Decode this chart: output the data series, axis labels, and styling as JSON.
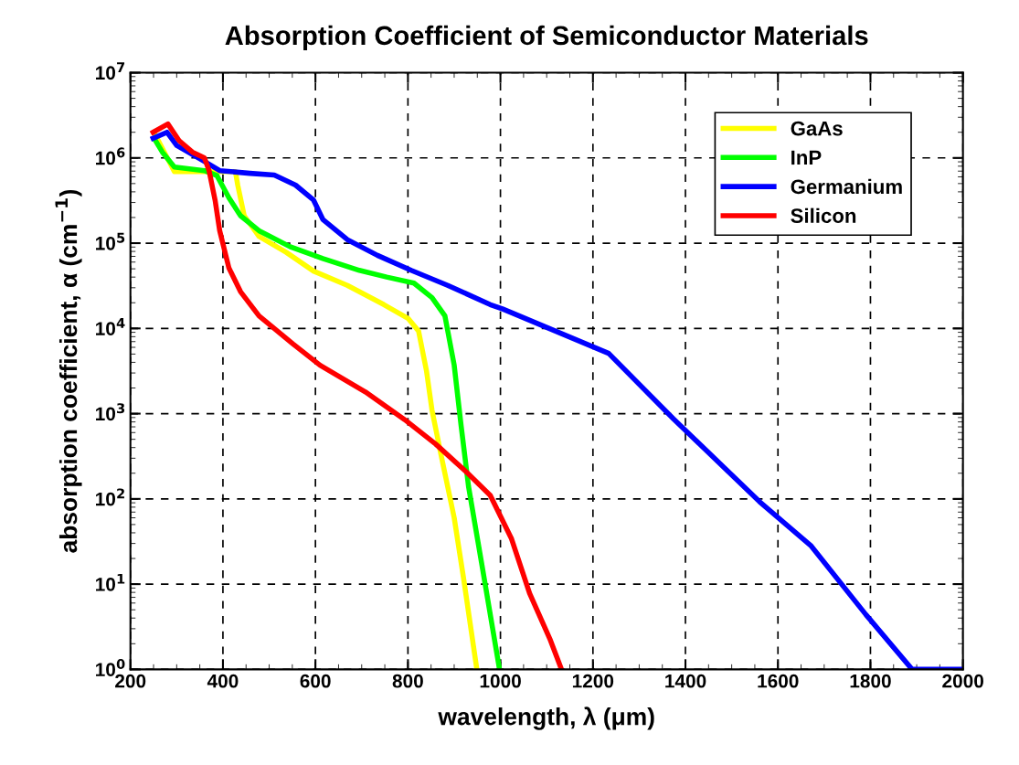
{
  "chart_data": {
    "type": "line",
    "title": "Absorption Coefficient of Semiconductor Materials",
    "xlabel": "wavelength, λ (μm)",
    "ylabel": "absorption coefficient, α (cm$^{−1}$)",
    "log": "y",
    "xlim": [
      200,
      2000
    ],
    "xticks": [
      200,
      400,
      600,
      800,
      1000,
      1200,
      1400,
      1600,
      1800,
      2000
    ],
    "ylim": [
      1,
      10000000
    ],
    "yticks": [
      {
        "value": 1,
        "label": "10$^{0}$"
      },
      {
        "value": 10,
        "label": "10$^{1}$"
      },
      {
        "value": 100,
        "label": "10$^{2}$"
      },
      {
        "value": 1000,
        "label": "10$^{3}$"
      },
      {
        "value": 10000,
        "label": "10$^{4}$"
      },
      {
        "value": 100000,
        "label": "10$^{5}$"
      },
      {
        "value": 1000000,
        "label": "10$^{6}$"
      },
      {
        "value": 10000000,
        "label": "10$^{7}$"
      }
    ],
    "grid": true,
    "legend": "top right",
    "line_style": "solid",
    "marker": "none",
    "series": [
      {
        "name": "GaAs",
        "color": "#ffff00",
        "x": [
          251,
          295,
          427,
          432,
          446,
          478,
          537,
          596,
          669,
          748,
          801,
          823,
          840,
          852,
          872,
          900,
          920,
          949
        ],
        "values": [
          2000000,
          690000,
          690000,
          480000,
          210000,
          120000,
          78000,
          47000,
          32000,
          19000,
          13000,
          9300,
          3200,
          1100,
          320,
          60,
          12,
          1
        ]
      },
      {
        "name": "InP",
        "color": "#00ff00",
        "x": [
          251,
          269,
          295,
          360,
          387,
          413,
          438,
          478,
          545,
          616,
          695,
          754,
          813,
          852,
          880,
          900,
          915,
          931,
          959,
          998
        ],
        "values": [
          1700000,
          1170000,
          780000,
          710000,
          620000,
          340000,
          210000,
          140000,
          91000,
          66000,
          48000,
          40000,
          34000,
          23000,
          14000,
          3700,
          720,
          140,
          18,
          1
        ]
      },
      {
        "name": "Germanium",
        "color": "#0000ff",
        "x": [
          249,
          279,
          300,
          360,
          393,
          458,
          511,
          557,
          596,
          616,
          669,
          734,
          807,
          886,
          978,
          1004,
          1234,
          1374,
          1560,
          1672,
          1790,
          1890,
          2000
        ],
        "values": [
          1700000,
          2000000,
          1400000,
          910000,
          710000,
          660000,
          630000,
          480000,
          320000,
          190000,
          110000,
          72000,
          48000,
          32000,
          19000,
          17000,
          5100,
          870,
          93,
          28,
          4.4,
          1,
          1
        ]
      },
      {
        "name": "Silicon",
        "color": "#ff0000",
        "x": [
          249,
          281,
          305,
          334,
          360,
          370,
          383,
          393,
          413,
          438,
          478,
          551,
          610,
          708,
          793,
          860,
          925,
          978,
          1024,
          1063,
          1108,
          1132
        ],
        "values": [
          2000000,
          2500000,
          1600000,
          1170000,
          1000000,
          710000,
          320000,
          140000,
          51000,
          27000,
          14000,
          6600,
          3700,
          1800,
          850,
          440,
          210,
          110,
          34,
          7.8,
          2.2,
          1
        ]
      }
    ]
  }
}
